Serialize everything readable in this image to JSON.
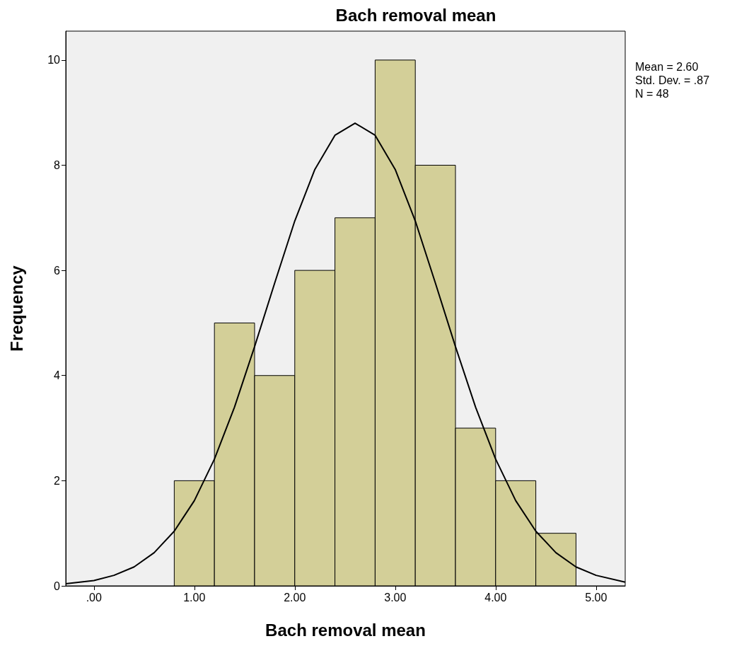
{
  "chart_data": {
    "type": "histogram",
    "title": "Bach removal mean",
    "xlabel": "Bach removal mean",
    "ylabel": "Frequency",
    "annotations": [
      "Mean = 2.60",
      "Std. Dev. = .87",
      "N = 48"
    ],
    "xlim": [
      -0.28,
      5.29
    ],
    "ylim": [
      0,
      10.55
    ],
    "xticks": [
      {
        "value": 0,
        "label": ".00"
      },
      {
        "value": 1,
        "label": "1.00"
      },
      {
        "value": 2,
        "label": "2.00"
      },
      {
        "value": 3,
        "label": "3.00"
      },
      {
        "value": 4,
        "label": "4.00"
      },
      {
        "value": 5,
        "label": "5.00"
      }
    ],
    "yticks": [
      0,
      2,
      4,
      6,
      8,
      10
    ],
    "marker": "none",
    "series": [
      {
        "type": "histogram",
        "color": "#d3cf98",
        "bins": [
          0.8,
          1.2,
          1.6,
          2.0,
          2.4,
          2.8,
          3.2,
          3.6,
          4.0,
          4.4,
          4.8
        ],
        "values": [
          2,
          5,
          4,
          6,
          7,
          10,
          8,
          3,
          2,
          1
        ]
      },
      {
        "type": "line",
        "color": "#000000",
        "x": [
          -0.28,
          0,
          0.2,
          0.4,
          0.6,
          0.8,
          1.0,
          1.2,
          1.4,
          1.6,
          1.8,
          2.0,
          2.2,
          2.4,
          2.6,
          2.8,
          3.0,
          3.2,
          3.4,
          3.6,
          3.8,
          4.0,
          4.2,
          4.4,
          4.6,
          4.8,
          5.0,
          5.29
        ],
        "values": [
          0.04,
          0.1,
          0.2,
          0.36,
          0.63,
          1.04,
          1.62,
          2.41,
          3.4,
          4.55,
          5.76,
          6.94,
          7.92,
          8.57,
          8.8,
          8.57,
          7.92,
          6.94,
          5.76,
          4.55,
          3.4,
          2.41,
          1.62,
          1.04,
          0.63,
          0.36,
          0.2,
          0.07
        ]
      }
    ]
  }
}
